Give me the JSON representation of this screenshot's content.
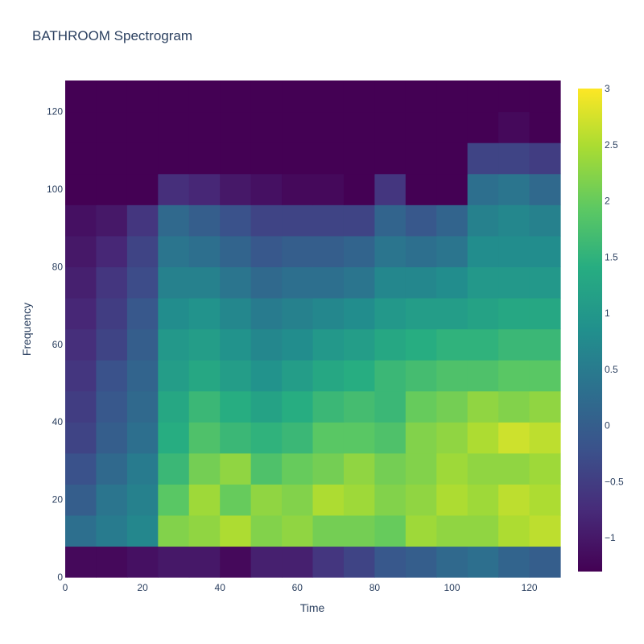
{
  "chart_data": {
    "type": "heatmap",
    "title": "BATHROOM Spectrogram",
    "xlabel": "Time",
    "ylabel": "Frequency",
    "xlim": [
      0,
      128
    ],
    "ylim": [
      0,
      128
    ],
    "x_ticks": [
      "0",
      "20",
      "40",
      "60",
      "80",
      "100",
      "120"
    ],
    "y_ticks": [
      "0",
      "20",
      "40",
      "60",
      "80",
      "100",
      "120"
    ],
    "colorscale": "Viridis",
    "zmin": -1.3,
    "zmax": 3,
    "colorbar_ticks": [
      "3",
      "2.5",
      "2",
      "1.5",
      "1",
      "0.5",
      "0",
      "−0.5",
      "−1"
    ],
    "grid": [
      [
        -1.2,
        -1.2,
        -1.1,
        -1.0,
        -1.0,
        -1.2,
        -0.9,
        -0.9,
        -0.6,
        -0.4,
        -0.1,
        0.0,
        0.2,
        0.3,
        0.1,
        0.0
      ],
      [
        0.3,
        0.5,
        0.7,
        2.2,
        2.3,
        2.5,
        2.2,
        2.3,
        2.1,
        2.1,
        2.0,
        2.4,
        2.3,
        2.3,
        2.5,
        2.6
      ],
      [
        0.0,
        0.4,
        0.6,
        1.9,
        2.4,
        2.0,
        2.3,
        2.2,
        2.5,
        2.4,
        2.2,
        2.3,
        2.5,
        2.4,
        2.6,
        2.5
      ],
      [
        -0.2,
        0.2,
        0.5,
        1.6,
        2.1,
        2.3,
        1.8,
        2.0,
        2.1,
        2.3,
        2.1,
        2.2,
        2.4,
        2.3,
        2.3,
        2.4
      ],
      [
        -0.4,
        0.0,
        0.3,
        1.4,
        1.8,
        1.6,
        1.5,
        1.6,
        1.9,
        1.9,
        1.8,
        2.2,
        2.3,
        2.5,
        2.7,
        2.6
      ],
      [
        -0.5,
        -0.1,
        0.2,
        1.3,
        1.6,
        1.4,
        1.2,
        1.4,
        1.6,
        1.7,
        1.6,
        2.0,
        2.1,
        2.3,
        2.2,
        2.3
      ],
      [
        -0.6,
        -0.2,
        0.1,
        1.1,
        1.3,
        1.1,
        0.9,
        1.1,
        1.3,
        1.4,
        1.6,
        1.7,
        1.8,
        1.8,
        1.9,
        1.9
      ],
      [
        -0.7,
        -0.4,
        0.0,
        1.0,
        1.1,
        0.9,
        0.7,
        0.8,
        1.0,
        1.1,
        1.3,
        1.4,
        1.5,
        1.5,
        1.6,
        1.6
      ],
      [
        -0.8,
        -0.5,
        -0.1,
        0.8,
        0.9,
        0.7,
        0.5,
        0.6,
        0.7,
        0.8,
        1.0,
        1.1,
        1.1,
        1.2,
        1.3,
        1.3
      ],
      [
        -0.9,
        -0.6,
        -0.3,
        0.6,
        0.6,
        0.4,
        0.2,
        0.3,
        0.3,
        0.4,
        0.7,
        0.7,
        0.8,
        1.0,
        1.0,
        1.0
      ],
      [
        -1.0,
        -0.8,
        -0.4,
        0.4,
        0.3,
        0.1,
        -0.1,
        0.0,
        0.0,
        0.1,
        0.4,
        0.3,
        0.4,
        0.8,
        0.8,
        0.8
      ],
      [
        -1.1,
        -1.0,
        -0.6,
        0.2,
        0.0,
        -0.2,
        -0.4,
        -0.4,
        -0.4,
        -0.4,
        0.1,
        -0.1,
        0.1,
        0.6,
        0.7,
        0.6
      ],
      [
        -1.3,
        -1.3,
        -1.3,
        -0.7,
        -0.8,
        -1.0,
        -1.1,
        -1.2,
        -1.2,
        -1.3,
        -0.6,
        -1.3,
        -1.3,
        0.3,
        0.4,
        0.2
      ],
      [
        -1.3,
        -1.3,
        -1.3,
        -1.3,
        -1.3,
        -1.3,
        -1.3,
        -1.3,
        -1.3,
        -1.3,
        -1.3,
        -1.3,
        -1.3,
        -0.4,
        -0.4,
        -0.5
      ],
      [
        -1.3,
        -1.3,
        -1.3,
        -1.3,
        -1.3,
        -1.3,
        -1.3,
        -1.3,
        -1.3,
        -1.3,
        -1.3,
        -1.3,
        -1.3,
        -1.3,
        -1.2,
        -1.3
      ],
      [
        -1.3,
        -1.3,
        -1.3,
        -1.3,
        -1.3,
        -1.3,
        -1.3,
        -1.3,
        -1.3,
        -1.3,
        -1.3,
        -1.3,
        -1.3,
        -1.3,
        -1.3,
        -1.3
      ]
    ]
  }
}
